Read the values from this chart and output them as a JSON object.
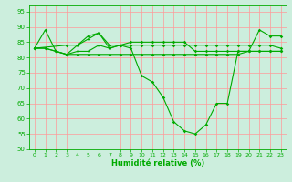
{
  "xlabel": "Humidité relative (%)",
  "xlim": [
    -0.5,
    23.5
  ],
  "ylim": [
    50,
    97
  ],
  "yticks": [
    50,
    55,
    60,
    65,
    70,
    75,
    80,
    85,
    90,
    95
  ],
  "xticks": [
    0,
    1,
    2,
    3,
    4,
    5,
    6,
    7,
    8,
    9,
    10,
    11,
    12,
    13,
    14,
    15,
    16,
    17,
    18,
    19,
    20,
    21,
    22,
    23
  ],
  "background_color": "#cceedd",
  "grid_color": "#ff9999",
  "line_color": "#00aa00",
  "line1_x": [
    0,
    1,
    2,
    3,
    4,
    5,
    6,
    7,
    8,
    9,
    10,
    11,
    12,
    13,
    14,
    15,
    16,
    17,
    18,
    19,
    20,
    21,
    22,
    23
  ],
  "line1_y": [
    83,
    89,
    82,
    81,
    84,
    87,
    88,
    84,
    84,
    83,
    74,
    72,
    67,
    59,
    56,
    55,
    58,
    65,
    65,
    82,
    82,
    89,
    87,
    87
  ],
  "line2_x": [
    0,
    1,
    2,
    3,
    4,
    5,
    6,
    7,
    8,
    9,
    10,
    11,
    12,
    13,
    14,
    15,
    16,
    17,
    18,
    19,
    20,
    21,
    22,
    23
  ],
  "line2_y": [
    83,
    83,
    82,
    81,
    81,
    81,
    81,
    81,
    81,
    81,
    81,
    81,
    81,
    81,
    81,
    81,
    81,
    81,
    81,
    81,
    82,
    82,
    82,
    82
  ],
  "line3_x": [
    0,
    3,
    4,
    5,
    6,
    7,
    8,
    9,
    10,
    11,
    12,
    13,
    14,
    15,
    16,
    17,
    18,
    19,
    20,
    21,
    22,
    23
  ],
  "line3_y": [
    83,
    84,
    84,
    86,
    88,
    83,
    84,
    84,
    84,
    84,
    84,
    84,
    84,
    84,
    84,
    84,
    84,
    84,
    84,
    84,
    84,
    83
  ],
  "line4_x": [
    0,
    1,
    2,
    3,
    4,
    5,
    6,
    7,
    8,
    9,
    10,
    11,
    12,
    13,
    14,
    15,
    16,
    17,
    18,
    19,
    20,
    21,
    22,
    23
  ],
  "line4_y": [
    83,
    83,
    82,
    81,
    82,
    82,
    84,
    83,
    84,
    85,
    85,
    85,
    85,
    85,
    85,
    82,
    82,
    82,
    82,
    82,
    82,
    82,
    82,
    82
  ]
}
